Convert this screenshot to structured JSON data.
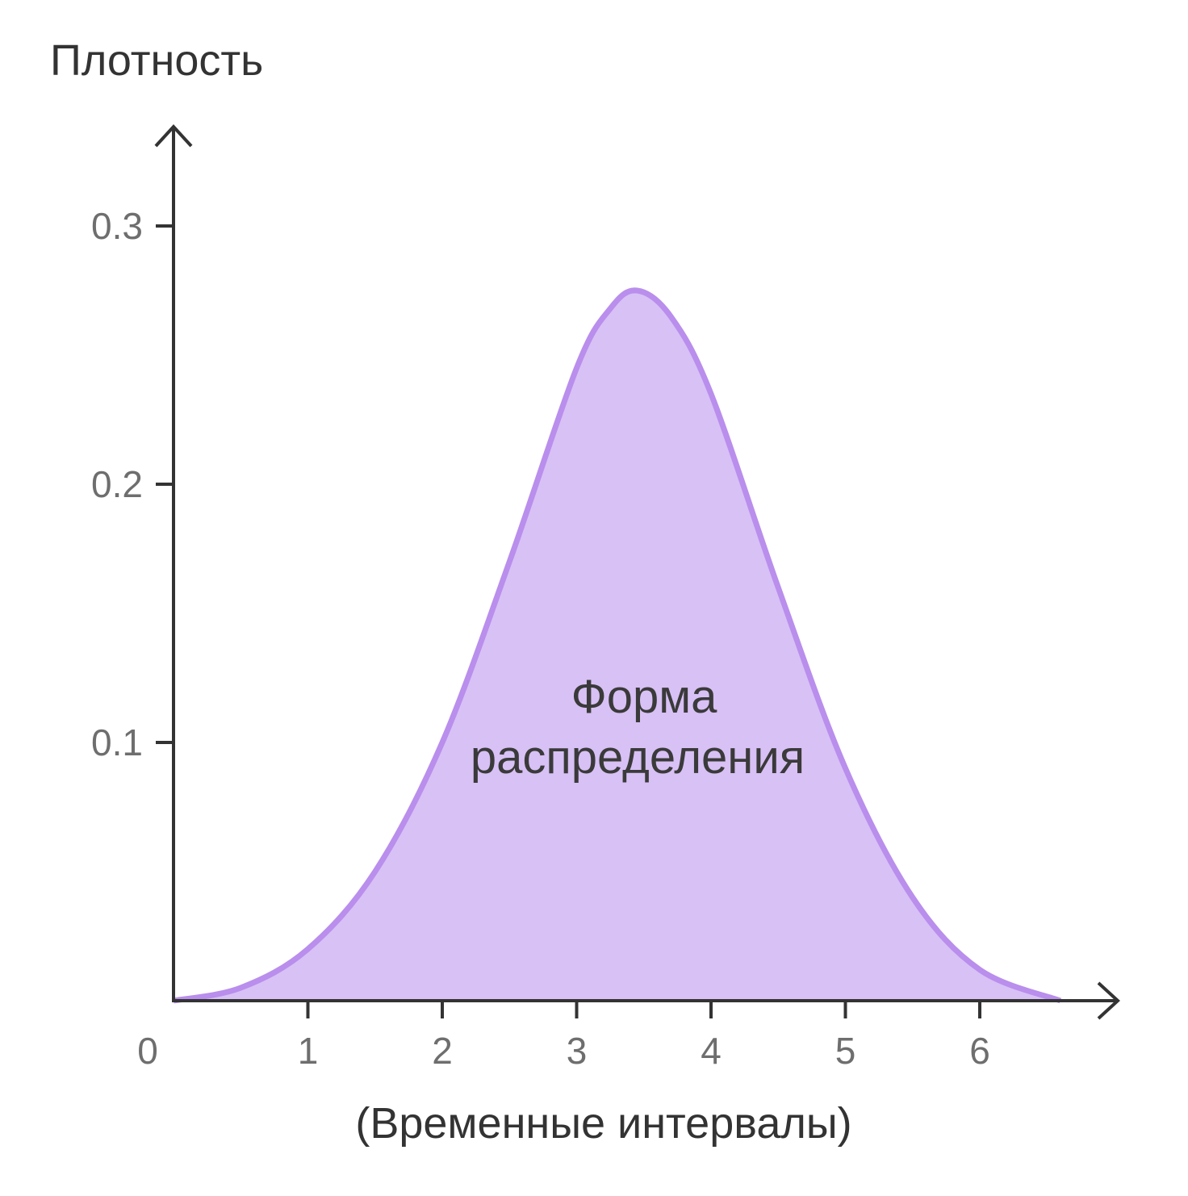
{
  "chart_data": {
    "type": "area",
    "title": "",
    "ylabel": "Плотность",
    "xlabel": "(Временные интервалы)",
    "annotation": [
      "Форма",
      "распределения"
    ],
    "xlim": [
      0,
      7
    ],
    "ylim": [
      0,
      0.33
    ],
    "x_ticks": [
      "0",
      "1",
      "2",
      "3",
      "4",
      "5",
      "6"
    ],
    "y_ticks": [
      "0.1",
      "0.2",
      "0.3"
    ],
    "y_tick_values": [
      0.1,
      0.2,
      0.3
    ],
    "grid": false,
    "series": [
      {
        "x": [
          0,
          0.5,
          1,
          1.5,
          2,
          2.5,
          3,
          3.25,
          3.45,
          3.7,
          4,
          4.5,
          5,
          5.5,
          6,
          6.6
        ],
        "y": [
          0,
          0.005,
          0.02,
          0.05,
          0.1,
          0.17,
          0.245,
          0.268,
          0.275,
          0.265,
          0.235,
          0.16,
          0.09,
          0.04,
          0.012,
          0
        ]
      }
    ],
    "colors": {
      "fill": "#d8c1f5",
      "stroke": "#b98eec",
      "axis": "#333333",
      "tick_label": "#6e6e6e"
    }
  }
}
